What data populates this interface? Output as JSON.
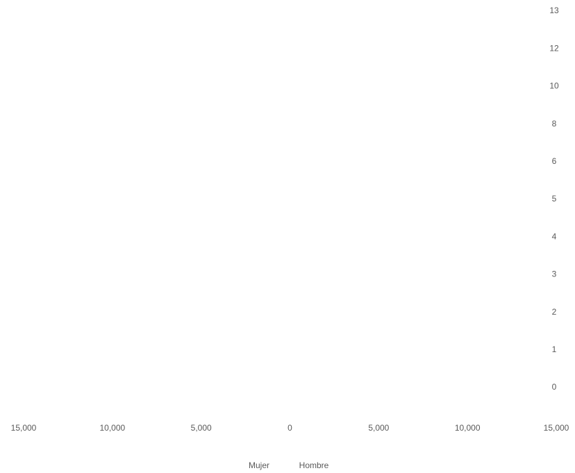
{
  "chart_data": {
    "type": "bar",
    "orientation": "horizontal",
    "categories": [
      "0",
      "1",
      "2",
      "3",
      "4",
      "5",
      "6",
      "8",
      "10",
      "12",
      "13"
    ],
    "series": [
      {
        "name": "Mujer",
        "values": [
          null,
          null,
          null,
          null,
          null,
          null,
          null,
          null,
          null,
          null,
          null
        ]
      },
      {
        "name": "Hombre",
        "values": [
          null,
          null,
          null,
          null,
          null,
          null,
          null,
          null,
          null,
          null,
          null
        ]
      }
    ],
    "xlim": [
      -15000,
      15000
    ],
    "xticks": [
      {
        "value": -15000,
        "label": "15,000"
      },
      {
        "value": -10000,
        "label": "10,000"
      },
      {
        "value": -5000,
        "label": "5,000"
      },
      0,
      {
        "value": 5000,
        "label": "5,000"
      },
      {
        "value": 10000,
        "label": "10,000"
      },
      {
        "value": 15000,
        "label": "15,000"
      }
    ]
  }
}
